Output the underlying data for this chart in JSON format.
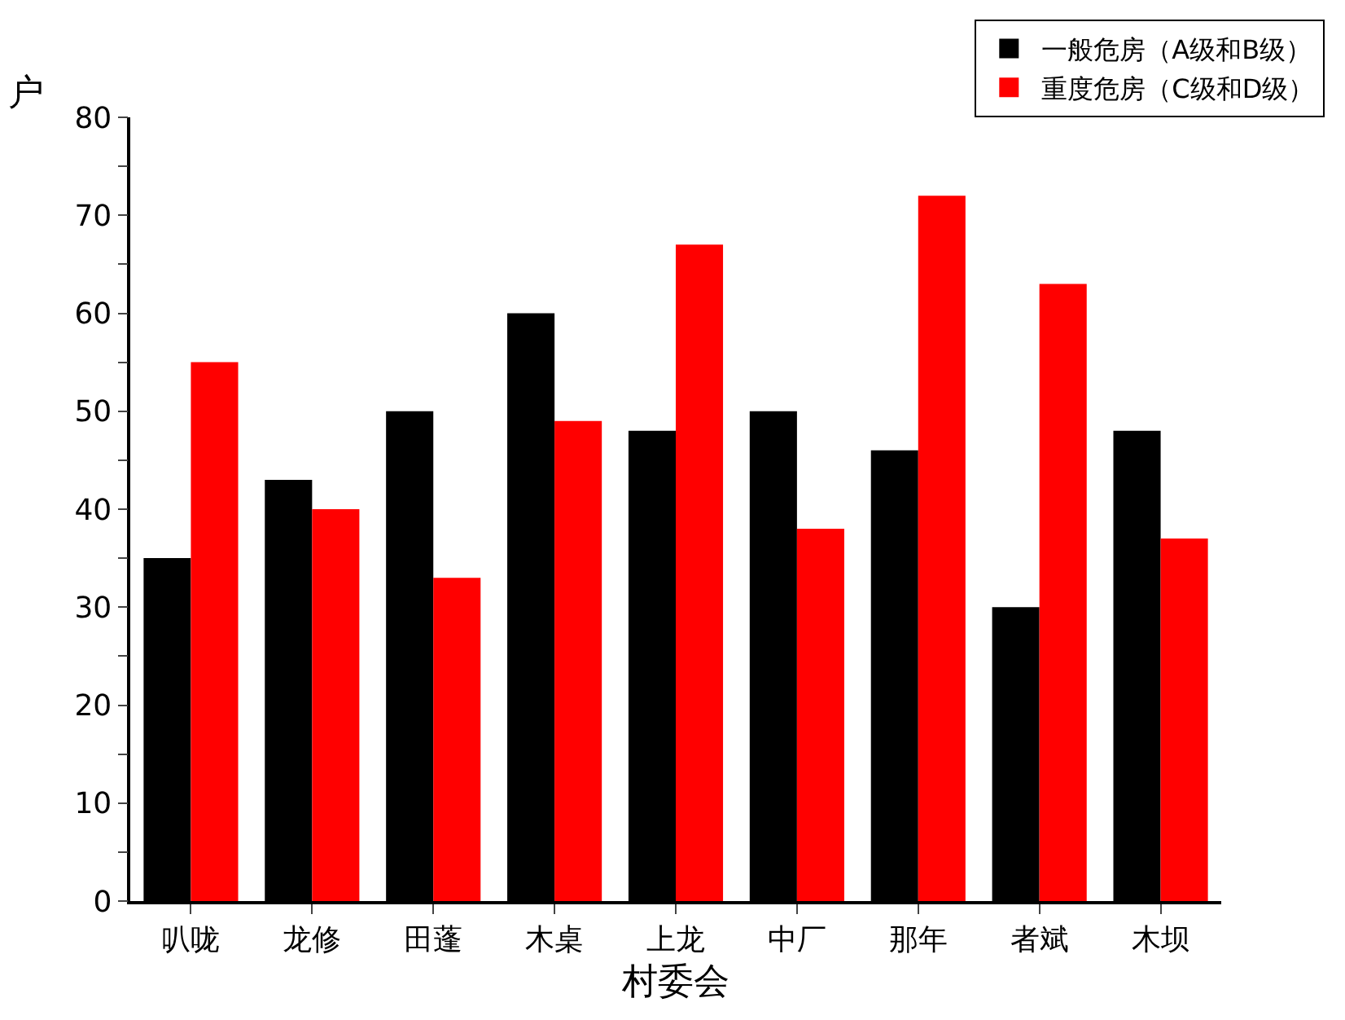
{
  "chart_data": {
    "type": "bar",
    "xlabel": "村委会",
    "ylabel": "户",
    "categories": [
      "叭咙",
      "龙修",
      "田蓬",
      "木桌",
      "上龙",
      "中厂",
      "那年",
      "者斌",
      "木坝"
    ],
    "series": [
      {
        "name": "一般危房（A级和B级）",
        "color": "#000000",
        "values": [
          35,
          43,
          50,
          60,
          48,
          50,
          46,
          30,
          48
        ]
      },
      {
        "name": "重度危房（C级和D级）",
        "color": "#ff0000",
        "values": [
          55,
          40,
          33,
          49,
          67,
          38,
          72,
          63,
          37
        ]
      }
    ],
    "ylim": [
      0,
      80
    ],
    "yticks": [
      0,
      {
        "value": 5,
        "label": null
      },
      10,
      {
        "value": 15,
        "label": null
      },
      20,
      {
        "value": 25,
        "label": null
      },
      30,
      {
        "value": 35,
        "label": null
      },
      40,
      {
        "value": 45,
        "label": null
      },
      50,
      {
        "value": 55,
        "label": null
      },
      60,
      {
        "value": 65,
        "label": null
      },
      70,
      {
        "value": 75,
        "label": null
      },
      80
    ],
    "legend": "top right"
  }
}
